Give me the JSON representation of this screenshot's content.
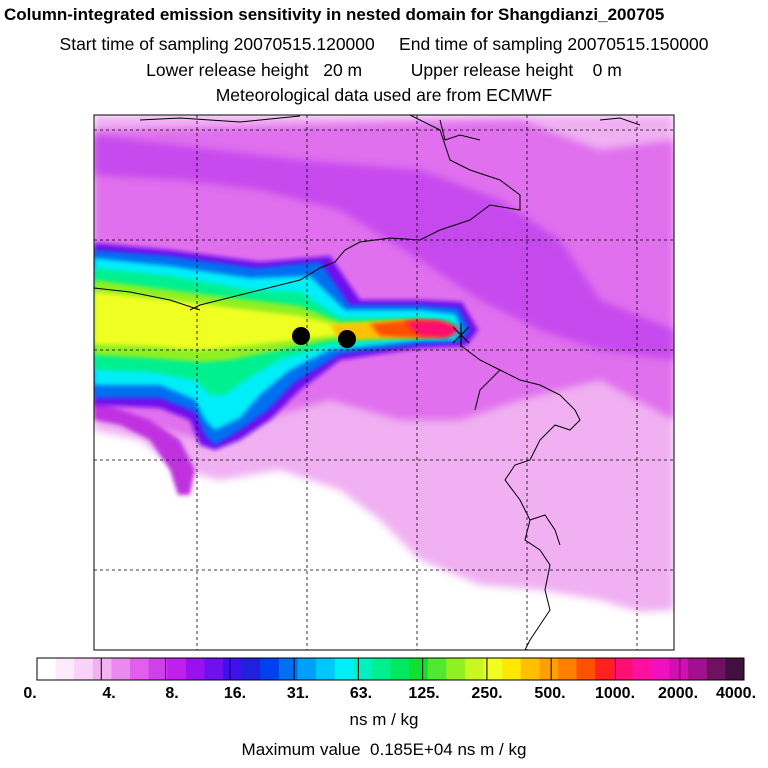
{
  "header": {
    "title": "Column-integrated emission sensitivity in nested domain for Shangdianzi_200705",
    "sampling_line": "Start time of sampling 20070515.120000     End time of sampling 20070515.150000",
    "release_line": "Lower release height   20 m          Upper release height    0 m",
    "met_line": "Meteorological data used are from ECMWF"
  },
  "colorbar": {
    "labels": [
      "0.",
      "4.",
      "8.",
      "16.",
      "31.",
      "63.",
      "125.",
      "250.",
      "500.",
      "1000.",
      "2000.",
      "4000."
    ],
    "colors": [
      "#ffffff",
      "#fdeafd",
      "#f9d2f9",
      "#f2b2f2",
      "#ea8aee",
      "#e060ec",
      "#d040ea",
      "#c020ee",
      "#9a10ee",
      "#7010ee",
      "#4010ee",
      "#2020dd",
      "#0040ee",
      "#0070f0",
      "#00a0f8",
      "#00c8ff",
      "#00eef8",
      "#00f0c0",
      "#00f090",
      "#00e860",
      "#10e030",
      "#50e830",
      "#90f020",
      "#c8f820",
      "#f0ff20",
      "#ffe800",
      "#ffc000",
      "#ffa000",
      "#ff8000",
      "#ff5000",
      "#ff2020",
      "#ff1070",
      "#ff10a0",
      "#f010c0",
      "#d010b0",
      "#a01090",
      "#701060",
      "#401040"
    ],
    "units": "ns m / kg"
  },
  "footer": {
    "max_value": "Maximum value  0.185E+04 ns m / kg"
  }
}
